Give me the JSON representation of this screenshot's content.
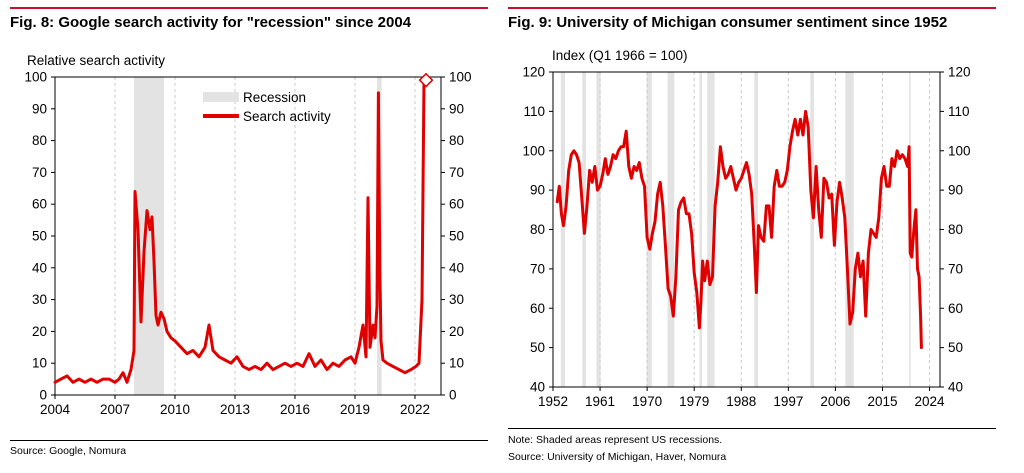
{
  "figures": {
    "fig8": {
      "title": "Fig. 8: Google search activity for \"recession\" since 2004",
      "source": "Source: Google, Nomura"
    },
    "fig9": {
      "title": "Fig. 9: University of Michigan consumer sentiment since 1952",
      "note": "Note: Shaded areas represent US recessions.",
      "source": "Source: University of Michigan, Haver, Nomura"
    }
  },
  "colors": {
    "line": "#e00000",
    "shade": "#e3e3e3",
    "accent": "#c8102e",
    "grid": "#c9c9c9"
  },
  "chart_data": [
    {
      "type": "line",
      "title": "Fig. 8: Google search activity for \"recession\" since 2004",
      "ylabel": "Relative search activity",
      "xlim": [
        2004,
        2023.3
      ],
      "ylim": [
        0,
        100
      ],
      "xticks": [
        2004,
        2007,
        2010,
        2013,
        2016,
        2019,
        2022
      ],
      "yticks": [
        0,
        10,
        20,
        30,
        40,
        50,
        60,
        70,
        80,
        90,
        100
      ],
      "legend": {
        "position": "top-center",
        "entries": [
          "Recession",
          "Search activity"
        ]
      },
      "recessions": [
        [
          2007.95,
          2009.45
        ],
        [
          2020.1,
          2020.33
        ]
      ],
      "series": [
        {
          "name": "Search activity",
          "x": [
            2004.0,
            2004.3,
            2004.6,
            2004.9,
            2005.2,
            2005.5,
            2005.8,
            2006.1,
            2006.4,
            2006.7,
            2007.0,
            2007.2,
            2007.4,
            2007.6,
            2007.8,
            2007.95,
            2008.0,
            2008.15,
            2008.3,
            2008.45,
            2008.6,
            2008.75,
            2008.85,
            2008.95,
            2009.05,
            2009.15,
            2009.3,
            2009.45,
            2009.6,
            2009.8,
            2010.0,
            2010.3,
            2010.6,
            2010.9,
            2011.2,
            2011.5,
            2011.7,
            2011.9,
            2012.2,
            2012.5,
            2012.8,
            2013.1,
            2013.4,
            2013.7,
            2014.0,
            2014.3,
            2014.6,
            2014.9,
            2015.2,
            2015.5,
            2015.8,
            2016.1,
            2016.4,
            2016.7,
            2017.0,
            2017.3,
            2017.6,
            2017.9,
            2018.2,
            2018.5,
            2018.8,
            2019.0,
            2019.2,
            2019.4,
            2019.55,
            2019.65,
            2019.75,
            2019.9,
            2020.0,
            2020.1,
            2020.17,
            2020.24,
            2020.3,
            2020.4,
            2020.6,
            2020.9,
            2021.2,
            2021.5,
            2021.8,
            2022.05,
            2022.2,
            2022.35,
            2022.45,
            2022.55
          ],
          "values": [
            4,
            5,
            6,
            4,
            5,
            4,
            5,
            4,
            5,
            5,
            4,
            5,
            7,
            4,
            8,
            14,
            64,
            52,
            23,
            45,
            58,
            52,
            56,
            42,
            25,
            22,
            26,
            24,
            20,
            18,
            17,
            15,
            13,
            14,
            12,
            15,
            22,
            14,
            12,
            11,
            10,
            12,
            9,
            8,
            9,
            8,
            10,
            8,
            9,
            10,
            9,
            10,
            9,
            13,
            9,
            11,
            8,
            10,
            9,
            11,
            12,
            10,
            15,
            22,
            12,
            62,
            15,
            22,
            18,
            28,
            95,
            40,
            17,
            11,
            10,
            9,
            8,
            7,
            8,
            9,
            10,
            30,
            99,
            99
          ]
        }
      ]
    },
    {
      "type": "line",
      "title": "Fig. 9: University of Michigan consumer sentiment since 1952",
      "ylabel": "Index (Q1 1966 = 100)",
      "xlim": [
        1952,
        2026
      ],
      "ylim": [
        40,
        120
      ],
      "xticks": [
        1952,
        1961,
        1970,
        1979,
        1988,
        1997,
        2006,
        2015,
        2024
      ],
      "yticks": [
        40,
        50,
        60,
        70,
        80,
        90,
        100,
        110,
        120
      ],
      "recessions": [
        [
          1953.5,
          1954.3
        ],
        [
          1957.6,
          1958.3
        ],
        [
          1960.3,
          1961.1
        ],
        [
          1969.9,
          1970.9
        ],
        [
          1973.9,
          1975.2
        ],
        [
          1980.0,
          1980.5
        ],
        [
          1981.5,
          1982.9
        ],
        [
          1990.5,
          1991.2
        ],
        [
          2001.2,
          2001.9
        ],
        [
          2007.9,
          2009.5
        ],
        [
          2020.1,
          2020.4
        ]
      ],
      "series": [
        {
          "name": "Consumer sentiment",
          "x": [
            1952.8,
            1953.2,
            1953.6,
            1954.0,
            1954.5,
            1955.0,
            1955.5,
            1956.0,
            1956.5,
            1957.0,
            1957.5,
            1958.0,
            1958.5,
            1959.0,
            1959.5,
            1960.0,
            1960.5,
            1961.0,
            1961.5,
            1962.0,
            1962.5,
            1963.0,
            1963.5,
            1964.0,
            1964.5,
            1965.0,
            1965.5,
            1966.0,
            1966.5,
            1967.0,
            1967.5,
            1968.0,
            1968.5,
            1969.0,
            1969.5,
            1970.0,
            1970.5,
            1971.0,
            1971.5,
            1972.0,
            1972.5,
            1973.0,
            1973.5,
            1974.0,
            1974.5,
            1975.0,
            1975.5,
            1976.0,
            1976.5,
            1977.0,
            1977.5,
            1978.0,
            1978.5,
            1979.0,
            1979.5,
            1980.0,
            1980.3,
            1980.6,
            1981.0,
            1981.5,
            1982.0,
            1982.5,
            1983.0,
            1983.5,
            1984.0,
            1984.5,
            1985.0,
            1985.5,
            1986.0,
            1986.5,
            1987.0,
            1987.5,
            1988.0,
            1988.5,
            1989.0,
            1989.5,
            1990.0,
            1990.5,
            1990.9,
            1991.3,
            1991.8,
            1992.3,
            1992.8,
            1993.3,
            1993.8,
            1994.3,
            1994.8,
            1995.3,
            1995.8,
            1996.3,
            1996.8,
            1997.3,
            1997.8,
            1998.3,
            1998.8,
            1999.3,
            1999.8,
            2000.3,
            2000.8,
            2001.3,
            2001.8,
            2002.3,
            2002.8,
            2003.3,
            2003.8,
            2004.3,
            2004.8,
            2005.3,
            2005.8,
            2006.3,
            2006.8,
            2007.3,
            2007.8,
            2008.3,
            2008.8,
            2009.3,
            2009.8,
            2010.3,
            2010.8,
            2011.3,
            2011.8,
            2012.3,
            2012.8,
            2013.3,
            2013.8,
            2014.3,
            2014.8,
            2015.3,
            2015.8,
            2016.3,
            2016.8,
            2017.3,
            2017.8,
            2018.3,
            2018.8,
            2019.3,
            2019.8,
            2020.1,
            2020.3,
            2020.6,
            2021.0,
            2021.4,
            2021.7,
            2022.0,
            2022.3,
            2022.45
          ],
          "values": [
            87,
            91,
            84,
            81,
            86,
            95,
            99,
            100,
            99,
            97,
            88,
            79,
            86,
            95,
            92,
            96,
            90,
            91,
            94,
            98,
            94,
            96,
            99,
            98,
            100,
            101,
            101,
            105,
            96,
            93,
            96,
            95,
            97,
            93,
            91,
            78,
            75,
            79,
            82,
            89,
            92,
            86,
            76,
            65,
            63,
            58,
            68,
            85,
            87,
            88,
            84,
            84,
            79,
            69,
            64,
            55,
            62,
            72,
            67,
            72,
            66,
            68,
            86,
            92,
            101,
            96,
            93,
            94,
            96,
            93,
            90,
            92,
            93,
            95,
            97,
            94,
            89,
            76,
            64,
            81,
            78,
            77,
            86,
            86,
            78,
            91,
            95,
            91,
            91,
            92,
            95,
            101,
            105,
            108,
            104,
            108,
            104,
            110,
            106,
            90,
            83,
            96,
            85,
            78,
            93,
            92,
            88,
            89,
            76,
            87,
            92,
            88,
            83,
            70,
            56,
            59,
            70,
            74,
            68,
            72,
            58,
            74,
            80,
            79,
            78,
            83,
            93,
            96,
            91,
            91,
            98,
            96,
            100,
            98,
            99,
            98,
            96,
            101,
            74,
            73,
            80,
            85,
            70,
            68,
            58,
            50
          ]
        }
      ]
    }
  ]
}
